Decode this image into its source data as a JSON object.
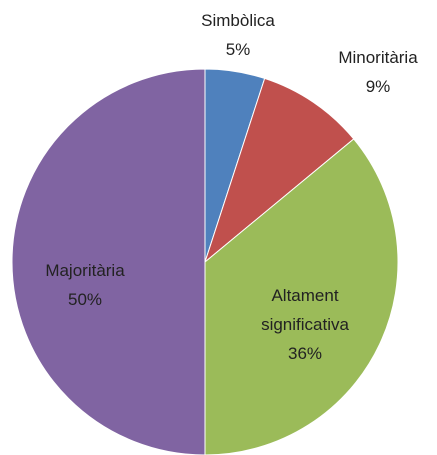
{
  "chart_data": {
    "type": "pie",
    "categories": [
      "Simbòlica",
      "Minoritària",
      "Altament significativa",
      "Majoritària"
    ],
    "values": [
      5,
      9,
      36,
      50
    ],
    "value_labels": [
      "5%",
      "9%",
      "36%",
      "50%"
    ],
    "colors": [
      "#4f81bd",
      "#c0504d",
      "#9bbb59",
      "#8064a2"
    ]
  }
}
